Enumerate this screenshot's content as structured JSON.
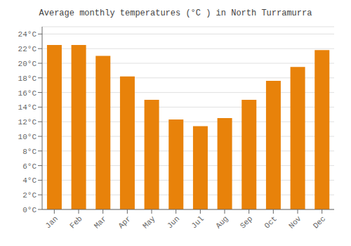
{
  "chart_data": {
    "type": "bar",
    "title": "Average monthly temperatures (°C ) in North Turramurra",
    "categories": [
      "Jan",
      "Feb",
      "Mar",
      "Apr",
      "May",
      "Jun",
      "Jul",
      "Aug",
      "Sep",
      "Oct",
      "Nov",
      "Dec"
    ],
    "values": [
      22.5,
      22.5,
      21.0,
      18.2,
      15.0,
      12.3,
      11.4,
      12.5,
      15.0,
      17.6,
      19.5,
      21.8
    ],
    "color": "#E8820A",
    "ylim": [
      0,
      25
    ],
    "yticks": [
      {
        "value": 0,
        "label": "0°C"
      },
      {
        "value": 2,
        "label": "2°C"
      },
      {
        "value": 4,
        "label": "4°C"
      },
      {
        "value": 6,
        "label": "6°C"
      },
      {
        "value": 8,
        "label": "8°C"
      },
      {
        "value": 10,
        "label": "10°C"
      },
      {
        "value": 12,
        "label": "12°C"
      },
      {
        "value": 14,
        "label": "14°C"
      },
      {
        "value": 16,
        "label": "16°C"
      },
      {
        "value": 18,
        "label": "18°C"
      },
      {
        "value": 20,
        "label": "20°C"
      },
      {
        "value": 22,
        "label": "22°C"
      },
      {
        "value": 24,
        "label": "24°C"
      }
    ],
    "grid": true
  }
}
